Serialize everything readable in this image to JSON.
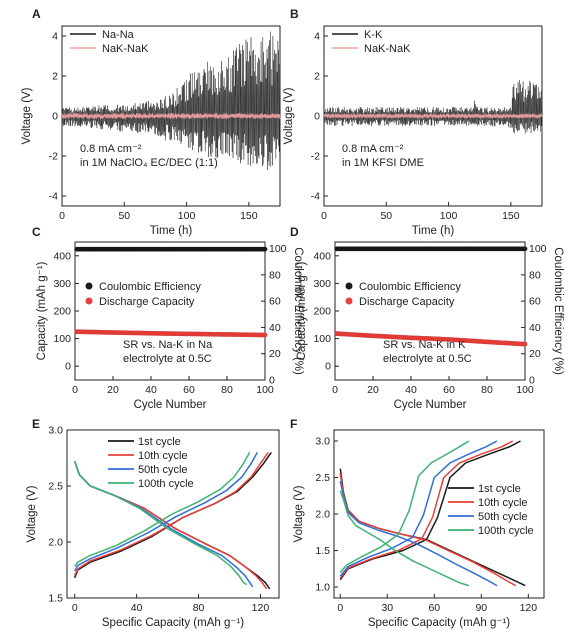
{
  "colors": {
    "black": "#1a1a1a",
    "pink": "#f2a0a0",
    "red": "#e8403a",
    "blue": "#2f6fd6",
    "green": "#3cb371",
    "gray": "#9a9a9a"
  },
  "chart_data": [
    {
      "panel": "A",
      "type": "line",
      "xlabel": "Time (h)",
      "ylabel": "Voltage (V)",
      "xlim": [
        0,
        175
      ],
      "ylim": [
        -4.5,
        4.5
      ],
      "xticks": [
        "0",
        "50",
        "100",
        "150"
      ],
      "yticks": [
        "-4",
        "-2",
        "0",
        "2",
        "4"
      ],
      "legend": [
        "Na-Na",
        "NaK-NaK"
      ],
      "legend_position": "top-left",
      "annotation_lines": [
        "0.8 mA cm⁻²",
        "in 1M NaClO₄ EC/DEC (1:1)"
      ],
      "series": [
        {
          "name": "Na-Na",
          "x": [
            0,
            25,
            50,
            75,
            90,
            100,
            110,
            120,
            130,
            140,
            150,
            160,
            170,
            175
          ],
          "ymax": [
            0.4,
            0.5,
            0.6,
            0.8,
            1.2,
            2.0,
            2.6,
            2.8,
            3.0,
            3.6,
            4.2,
            4.3,
            4.2,
            4.0
          ],
          "ymin": [
            -0.5,
            -0.6,
            -0.8,
            -1.0,
            -1.4,
            -1.8,
            -2.0,
            -2.1,
            -2.2,
            -2.4,
            -2.5,
            -2.6,
            -2.8,
            -3.0
          ]
        },
        {
          "name": "NaK-NaK",
          "x": [
            0,
            175
          ],
          "ymax": [
            0.15,
            0.15
          ],
          "ymin": [
            -0.15,
            -0.15
          ]
        }
      ]
    },
    {
      "panel": "B",
      "type": "line",
      "xlabel": "Time (h)",
      "ylabel": "Voltage (V)",
      "xlim": [
        0,
        175
      ],
      "ylim": [
        -4.5,
        4.5
      ],
      "xticks": [
        "0",
        "50",
        "100",
        "150"
      ],
      "yticks": [
        "-4",
        "-2",
        "0",
        "2",
        "4"
      ],
      "legend": [
        "K-K",
        "NaK-NaK"
      ],
      "legend_position": "top-left",
      "annotation_lines": [
        "0.8 mA cm⁻²",
        "in 1M KFSI DME"
      ],
      "series": [
        {
          "name": "K-K",
          "x": [
            0,
            120,
            121,
            125,
            150,
            152,
            160,
            175
          ],
          "ymax": [
            0.45,
            0.45,
            1.3,
            0.45,
            0.45,
            1.8,
            1.8,
            1.7
          ],
          "ymin": [
            -0.5,
            -0.5,
            -0.5,
            -0.5,
            -0.6,
            -0.9,
            -0.9,
            -0.8
          ]
        },
        {
          "name": "NaK-NaK",
          "x": [
            0,
            175
          ],
          "ymax": [
            0.12,
            0.12
          ],
          "ymin": [
            -0.12,
            -0.12
          ]
        }
      ]
    },
    {
      "panel": "C",
      "type": "scatter",
      "xlabel": "Cycle Number",
      "ylabel": "Capacity (mAh g⁻¹)",
      "y2label": "Coulombic Efficiency (%)",
      "xlim": [
        0,
        100
      ],
      "ylim": [
        -50,
        450
      ],
      "y2lim": [
        0,
        105
      ],
      "xticks": [
        "0",
        "20",
        "40",
        "60",
        "80",
        "100"
      ],
      "yticks": [
        "0",
        "100",
        "200",
        "300",
        "400"
      ],
      "y2ticks": [
        "0",
        "20",
        "40",
        "60",
        "80",
        "100"
      ],
      "legend": [
        "Coulombic Efficiency",
        "Discharge Capacity"
      ],
      "legend_position": "center",
      "annotation_lines": [
        "SR vs. Na-K in Na",
        "electrolyte at 0.5C"
      ],
      "series": [
        {
          "name": "Coulombic Efficiency",
          "axis": "right",
          "x": [
            1,
            100
          ],
          "y": [
            99.5,
            99.5
          ]
        },
        {
          "name": "Discharge Capacity",
          "axis": "left",
          "x": [
            1,
            20,
            50,
            80,
            100
          ],
          "y": [
            125,
            122,
            118,
            115,
            113
          ]
        }
      ]
    },
    {
      "panel": "D",
      "type": "scatter",
      "xlabel": "Cycle Number",
      "ylabel": "Capacity (mAh g⁻¹)",
      "y2label": "Coulombic Efficiency (%)",
      "xlim": [
        0,
        100
      ],
      "ylim": [
        -50,
        450
      ],
      "y2lim": [
        0,
        105
      ],
      "xticks": [
        "0",
        "20",
        "40",
        "60",
        "80",
        "100"
      ],
      "yticks": [
        "0",
        "100",
        "200",
        "300",
        "400"
      ],
      "y2ticks": [
        "0",
        "20",
        "40",
        "60",
        "80",
        "100"
      ],
      "legend": [
        "Coulombic Efficiency",
        "Discharge Capacity"
      ],
      "legend_position": "center",
      "annotation_lines": [
        "SR vs. Na-K in K",
        "electrolyte at 0.5C"
      ],
      "series": [
        {
          "name": "Coulombic Efficiency",
          "axis": "right",
          "x": [
            1,
            100
          ],
          "y": [
            99.8,
            99.8
          ]
        },
        {
          "name": "Discharge Capacity",
          "axis": "left",
          "x": [
            1,
            20,
            40,
            60,
            80,
            100
          ],
          "y": [
            118,
            110,
            103,
            97,
            88,
            80
          ]
        }
      ]
    },
    {
      "panel": "E",
      "type": "line",
      "xlabel": "Specific Capacity (mAh g⁻¹)",
      "ylabel": "Voltage (V)",
      "xlim": [
        -5,
        132
      ],
      "ylim": [
        1.5,
        3.0
      ],
      "xticks": [
        "0",
        "40",
        "80",
        "120"
      ],
      "yticks": [
        "1.5",
        "2.0",
        "2.5",
        "3.0"
      ],
      "legend": [
        "1st cycle",
        "10th cycle",
        "50th cycle",
        "100th cycle"
      ],
      "legend_position": "top-left",
      "series": [
        {
          "name": "1st cycle",
          "discharge_x": [
            0,
            3,
            10,
            25,
            45,
            65,
            85,
            100,
            110,
            118,
            123,
            126
          ],
          "discharge_y": [
            2.72,
            2.6,
            2.5,
            2.42,
            2.3,
            2.12,
            1.98,
            1.88,
            1.78,
            1.7,
            1.64,
            1.58
          ],
          "charge_x": [
            0,
            2,
            10,
            30,
            50,
            70,
            90,
            105,
            115,
            122,
            127
          ],
          "charge_y": [
            1.68,
            1.75,
            1.82,
            1.92,
            2.05,
            2.22,
            2.34,
            2.45,
            2.58,
            2.7,
            2.8
          ]
        },
        {
          "name": "10th cycle",
          "discharge_x": [
            0,
            3,
            10,
            25,
            45,
            65,
            85,
            100,
            110,
            117,
            121,
            124
          ],
          "discharge_y": [
            2.72,
            2.6,
            2.5,
            2.42,
            2.3,
            2.12,
            1.98,
            1.88,
            1.78,
            1.7,
            1.64,
            1.58
          ],
          "charge_x": [
            0,
            2,
            10,
            30,
            50,
            70,
            90,
            104,
            114,
            120,
            125
          ],
          "charge_y": [
            1.7,
            1.76,
            1.83,
            1.93,
            2.06,
            2.22,
            2.34,
            2.45,
            2.58,
            2.7,
            2.8
          ]
        },
        {
          "name": "50th cycle",
          "discharge_x": [
            0,
            3,
            10,
            25,
            43,
            62,
            80,
            95,
            104,
            110,
            113,
            115
          ],
          "discharge_y": [
            2.72,
            2.6,
            2.5,
            2.42,
            2.3,
            2.12,
            1.98,
            1.88,
            1.78,
            1.7,
            1.64,
            1.6
          ],
          "charge_x": [
            0,
            2,
            10,
            28,
            47,
            66,
            84,
            98,
            108,
            114,
            118
          ],
          "charge_y": [
            1.74,
            1.79,
            1.85,
            1.95,
            2.08,
            2.23,
            2.35,
            2.46,
            2.58,
            2.7,
            2.8
          ]
        },
        {
          "name": "100th cycle",
          "discharge_x": [
            0,
            3,
            10,
            25,
            42,
            60,
            78,
            92,
            101,
            106,
            109,
            111
          ],
          "discharge_y": [
            2.72,
            2.6,
            2.5,
            2.42,
            2.3,
            2.12,
            1.98,
            1.88,
            1.78,
            1.7,
            1.64,
            1.62
          ],
          "charge_x": [
            0,
            2,
            10,
            27,
            45,
            63,
            80,
            94,
            103,
            109,
            113
          ],
          "charge_y": [
            1.78,
            1.82,
            1.88,
            1.97,
            2.1,
            2.25,
            2.36,
            2.47,
            2.58,
            2.7,
            2.8
          ]
        }
      ]
    },
    {
      "panel": "F",
      "type": "line",
      "xlabel": "Specific Capacity (mAh g⁻¹)",
      "ylabel": "Voltage (V)",
      "xlim": [
        -4,
        130
      ],
      "ylim": [
        0.85,
        3.15
      ],
      "xticks": [
        "0",
        "30",
        "60",
        "90",
        "120"
      ],
      "yticks": [
        "1.0",
        "1.5",
        "2.0",
        "2.5",
        "3.0"
      ],
      "legend": [
        "1st cycle",
        "10th cycle",
        "50th cycle",
        "100th cycle"
      ],
      "legend_position": "center-right",
      "series": [
        {
          "name": "1st cycle",
          "discharge_x": [
            0,
            2,
            5,
            12,
            25,
            40,
            55,
            70,
            85,
            100,
            110,
            118
          ],
          "discharge_y": [
            2.62,
            2.3,
            2.05,
            1.9,
            1.8,
            1.72,
            1.65,
            1.5,
            1.35,
            1.2,
            1.1,
            1.02
          ],
          "charge_x": [
            0,
            5,
            20,
            40,
            55,
            62,
            70,
            80,
            95,
            108,
            115
          ],
          "charge_y": [
            1.1,
            1.25,
            1.38,
            1.5,
            1.65,
            1.95,
            2.5,
            2.7,
            2.82,
            2.92,
            3.0
          ]
        },
        {
          "name": "10th cycle",
          "discharge_x": [
            0,
            2,
            5,
            12,
            25,
            40,
            55,
            70,
            85,
            98,
            106,
            112
          ],
          "discharge_y": [
            2.55,
            2.28,
            2.04,
            1.9,
            1.8,
            1.72,
            1.64,
            1.49,
            1.34,
            1.19,
            1.09,
            1.02
          ],
          "charge_x": [
            0,
            5,
            20,
            38,
            52,
            59,
            66,
            76,
            90,
            103,
            110
          ],
          "charge_y": [
            1.12,
            1.26,
            1.39,
            1.51,
            1.66,
            1.96,
            2.5,
            2.7,
            2.82,
            2.92,
            3.0
          ]
        },
        {
          "name": "50th cycle",
          "discharge_x": [
            0,
            2,
            5,
            12,
            24,
            36,
            48,
            62,
            75,
            87,
            95,
            100
          ],
          "discharge_y": [
            2.45,
            2.25,
            2.02,
            1.88,
            1.78,
            1.7,
            1.6,
            1.45,
            1.3,
            1.17,
            1.08,
            1.02
          ],
          "charge_x": [
            0,
            5,
            18,
            33,
            46,
            53,
            60,
            70,
            82,
            93,
            100
          ],
          "charge_y": [
            1.15,
            1.28,
            1.41,
            1.53,
            1.68,
            1.98,
            2.5,
            2.7,
            2.82,
            2.92,
            3.0
          ]
        },
        {
          "name": "100th cycle",
          "discharge_x": [
            0,
            2,
            5,
            10,
            18,
            26,
            35,
            46,
            58,
            68,
            76,
            82
          ],
          "discharge_y": [
            2.32,
            2.2,
            1.98,
            1.84,
            1.74,
            1.64,
            1.5,
            1.36,
            1.24,
            1.14,
            1.06,
            1.02
          ],
          "charge_x": [
            0,
            4,
            14,
            26,
            37,
            44,
            50,
            58,
            68,
            76,
            82
          ],
          "charge_y": [
            1.2,
            1.3,
            1.42,
            1.55,
            1.72,
            2.05,
            2.52,
            2.7,
            2.82,
            2.92,
            3.0
          ]
        }
      ]
    }
  ]
}
